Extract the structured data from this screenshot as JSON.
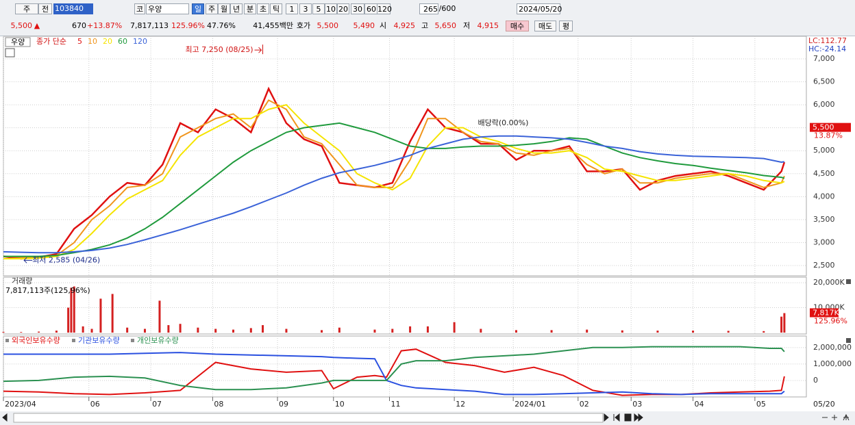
{
  "toolbar": {
    "market": "주",
    "type": "전",
    "code": "103840",
    "kind": "코",
    "name": "우양",
    "periods": [
      "일",
      "주",
      "월",
      "년",
      "분",
      "초",
      "틱"
    ],
    "intervals": [
      "1",
      "3",
      "5",
      "10",
      "20",
      "30",
      "60",
      "120"
    ],
    "count": "265",
    "max": "/600",
    "date": "2024/05/20"
  },
  "quote": {
    "price": "5,500",
    "sign": "▲",
    "change": "670",
    "rate": "+13.87%",
    "volume": "7,817,113",
    "volume_rate": "125.96%",
    "turnover": "47.76%",
    "amount": "41,455백만",
    "ask_label": "호가",
    "ask": "5,500",
    "bid": "5,490",
    "open_label": "시",
    "open": "4,925",
    "high_label": "고",
    "high": "5,650",
    "low_label": "저",
    "low": "4,915",
    "buy": "매수",
    "sell": "매도",
    "avg": "평"
  },
  "chart_data": [
    {
      "type": "line",
      "name": "우양",
      "legend_title": "종가 단순",
      "x": [
        0,
        6,
        12,
        18,
        24,
        30,
        36,
        42,
        48,
        54,
        60,
        66,
        72,
        78,
        84,
        90,
        96,
        102,
        108,
        114,
        120,
        126,
        132,
        138,
        144,
        150,
        156,
        162,
        168,
        174,
        180,
        186,
        192,
        198,
        204,
        210,
        216,
        222,
        228,
        234,
        240,
        246,
        252,
        258,
        264,
        265
      ],
      "xlim": [
        0,
        272
      ],
      "ylim": [
        2277,
        7491
      ],
      "yticks": [
        {
          "value": 7000,
          "label": "7,000"
        },
        {
          "value": 6500,
          "label": "6,500"
        },
        {
          "value": 6000,
          "label": "6,000"
        },
        {
          "value": 5500,
          "label": "5,500"
        },
        {
          "value": 5000,
          "label": "5,000"
        },
        {
          "value": 4500,
          "label": "4,500"
        },
        {
          "value": 4000,
          "label": "4,000"
        },
        {
          "value": 3500,
          "label": "3,500"
        },
        {
          "value": 3000,
          "label": "3,000"
        },
        {
          "value": 2500,
          "label": "2,500"
        }
      ],
      "grid": true,
      "series": [
        {
          "name": "5",
          "color": "#e01010",
          "values": [
            2700,
            2650,
            2680,
            2750,
            3300,
            3600,
            4000,
            4300,
            4250,
            4700,
            5600,
            5400,
            5900,
            5700,
            5400,
            6350,
            5600,
            5250,
            5100,
            4300,
            4250,
            4200,
            4300,
            5200,
            5900,
            5500,
            5400,
            5150,
            5150,
            4800,
            5000,
            5000,
            5100,
            4550,
            4550,
            4600,
            4150,
            4350,
            4450,
            4500,
            4550,
            4450,
            4300,
            4150,
            4550,
            4750
          ]
        },
        {
          "name": "10",
          "color": "#f0951c",
          "values": [
            2700,
            2680,
            2670,
            2720,
            3000,
            3500,
            3800,
            4200,
            4250,
            4500,
            5300,
            5500,
            5700,
            5800,
            5500,
            6100,
            5900,
            5300,
            5150,
            4700,
            4250,
            4200,
            4200,
            4800,
            5700,
            5700,
            5400,
            5200,
            5150,
            4950,
            4900,
            5000,
            5050,
            4700,
            4500,
            4600,
            4300,
            4300,
            4400,
            4450,
            4500,
            4500,
            4350,
            4200,
            4300,
            4450
          ]
        },
        {
          "name": "20",
          "color": "#f5e400",
          "values": [
            2650,
            2650,
            2660,
            2700,
            2850,
            3200,
            3600,
            3950,
            4150,
            4350,
            4900,
            5300,
            5500,
            5700,
            5700,
            5900,
            6000,
            5600,
            5300,
            5000,
            4500,
            4300,
            4150,
            4400,
            5100,
            5500,
            5500,
            5300,
            5200,
            5050,
            4950,
            4950,
            5000,
            4850,
            4600,
            4550,
            4450,
            4350,
            4350,
            4400,
            4450,
            4500,
            4450,
            4350,
            4300,
            4330
          ]
        },
        {
          "name": "60",
          "color": "#1f9a3c",
          "values": [
            2700,
            2700,
            2700,
            2720,
            2780,
            2850,
            2950,
            3100,
            3300,
            3550,
            3850,
            4150,
            4450,
            4750,
            5000,
            5200,
            5400,
            5500,
            5550,
            5600,
            5500,
            5400,
            5250,
            5100,
            5050,
            5050,
            5080,
            5100,
            5100,
            5120,
            5150,
            5200,
            5280,
            5250,
            5100,
            4950,
            4850,
            4780,
            4720,
            4680,
            4620,
            4570,
            4520,
            4460,
            4420,
            4400
          ]
        },
        {
          "name": "120",
          "color": "#3a62d8",
          "values": [
            2800,
            2790,
            2780,
            2780,
            2800,
            2830,
            2880,
            2960,
            3060,
            3170,
            3280,
            3400,
            3520,
            3640,
            3780,
            3930,
            4080,
            4250,
            4400,
            4520,
            4600,
            4680,
            4780,
            4900,
            5050,
            5150,
            5250,
            5300,
            5320,
            5320,
            5300,
            5280,
            5250,
            5180,
            5100,
            5050,
            4980,
            4930,
            4900,
            4880,
            4870,
            4860,
            4850,
            4830,
            4750,
            4760
          ]
        }
      ],
      "annotations": [
        {
          "text": "최고 7,250 (08/25)",
          "x": 88,
          "y": 7250
        },
        {
          "text": "최저 2,585 (04/26)",
          "x": 7,
          "y": 2585
        },
        {
          "text": "배당락(0.00%)",
          "x": 161,
          "y": 5600
        }
      ],
      "indicators": [
        "LC:112.77",
        "HC:-24.14"
      ],
      "last_price": {
        "value": 5500,
        "label": "5,500"
      },
      "last_change": "13.87%"
    },
    {
      "type": "bar",
      "title": "거래량",
      "subtitle": "7,817,113주(125,96%)",
      "color": "#d42020",
      "x": [
        0,
        6,
        12,
        18,
        22,
        23,
        24,
        27,
        30,
        33,
        37,
        42,
        48,
        53,
        56,
        60,
        66,
        72,
        78,
        84,
        88,
        96,
        108,
        114,
        126,
        132,
        138,
        144,
        153,
        162,
        174,
        186,
        198,
        210,
        222,
        234,
        246,
        258,
        264,
        265
      ],
      "values": [
        300000,
        250000,
        400000,
        800000,
        10000000,
        18000000,
        18500000,
        2500000,
        1500000,
        13600000,
        15500000,
        2000000,
        1500000,
        12800000,
        3000000,
        3500000,
        2000000,
        1500000,
        1200000,
        1800000,
        3000000,
        1500000,
        1000000,
        2000000,
        1200000,
        1500000,
        2500000,
        2500000,
        4200000,
        1500000,
        1000000,
        1000000,
        1200000,
        900000,
        800000,
        800000,
        700000,
        600000,
        6400000,
        7817113
      ],
      "xlim": [
        0,
        272
      ],
      "ylim": [
        -550000,
        22220000
      ],
      "yticks": [
        {
          "value": 20000000,
          "label": "20,000K"
        },
        {
          "value": 10000000,
          "label": "10,000K"
        }
      ],
      "last": {
        "value": 7817113,
        "label": "7,817K"
      },
      "last_rate": "125.96%"
    },
    {
      "type": "line",
      "x": [
        0,
        12,
        24,
        36,
        48,
        60,
        72,
        84,
        96,
        108,
        112,
        120,
        126,
        130,
        135,
        140,
        150,
        160,
        170,
        180,
        190,
        200,
        210,
        220,
        230,
        240,
        250,
        260,
        264,
        265
      ],
      "xlim": [
        0,
        272
      ],
      "ylim": [
        -1000000,
        2700000
      ],
      "yticks": [
        {
          "value": 2000000,
          "label": "2,000,000"
        },
        {
          "value": 1000000,
          "label": "1,000,000"
        },
        0
      ],
      "xticks": [
        {
          "value": 0,
          "label": "2023/04"
        },
        {
          "value": 29,
          "label": "06"
        },
        {
          "value": 50,
          "label": "07"
        },
        {
          "value": 71,
          "label": "08"
        },
        {
          "value": 93,
          "label": "09"
        },
        {
          "value": 112,
          "label": "10"
        },
        {
          "value": 131,
          "label": "11"
        },
        {
          "value": 153,
          "label": "12"
        },
        {
          "value": 173,
          "label": "2024/01"
        },
        {
          "value": 195,
          "label": "02"
        },
        {
          "value": 213,
          "label": "03"
        },
        {
          "value": 234,
          "label": "04"
        },
        {
          "value": 255,
          "label": "05"
        }
      ],
      "end_label": "05/20",
      "series": [
        {
          "name": "외국인보유수량",
          "color": "#e01010",
          "values": [
            -650000,
            -700000,
            -800000,
            -850000,
            -750000,
            -600000,
            1100000,
            700000,
            500000,
            600000,
            -500000,
            200000,
            300000,
            200000,
            1800000,
            1900000,
            1100000,
            900000,
            500000,
            800000,
            300000,
            -600000,
            -900000,
            -850000,
            -850000,
            -750000,
            -700000,
            -650000,
            -600000,
            250000
          ]
        },
        {
          "name": "기관보유수량",
          "color": "#2a50e0",
          "values": [
            1600000,
            1600000,
            1600000,
            1600000,
            1650000,
            1700000,
            1600000,
            1550000,
            1500000,
            1450000,
            1400000,
            1350000,
            1320000,
            0,
            -300000,
            -450000,
            -550000,
            -650000,
            -850000,
            -850000,
            -800000,
            -750000,
            -700000,
            -800000,
            -850000,
            -800000,
            -800000,
            -800000,
            -800000,
            -650000
          ]
        },
        {
          "name": "개인보유수량",
          "color": "#2a9050",
          "values": [
            -50000,
            0,
            200000,
            250000,
            150000,
            -300000,
            -550000,
            -550000,
            -450000,
            -150000,
            0,
            0,
            0,
            0,
            1000000,
            1200000,
            1200000,
            1400000,
            1500000,
            1600000,
            1800000,
            2000000,
            2000000,
            2050000,
            2050000,
            2050000,
            2050000,
            1950000,
            1950000,
            1750000
          ]
        }
      ]
    }
  ]
}
